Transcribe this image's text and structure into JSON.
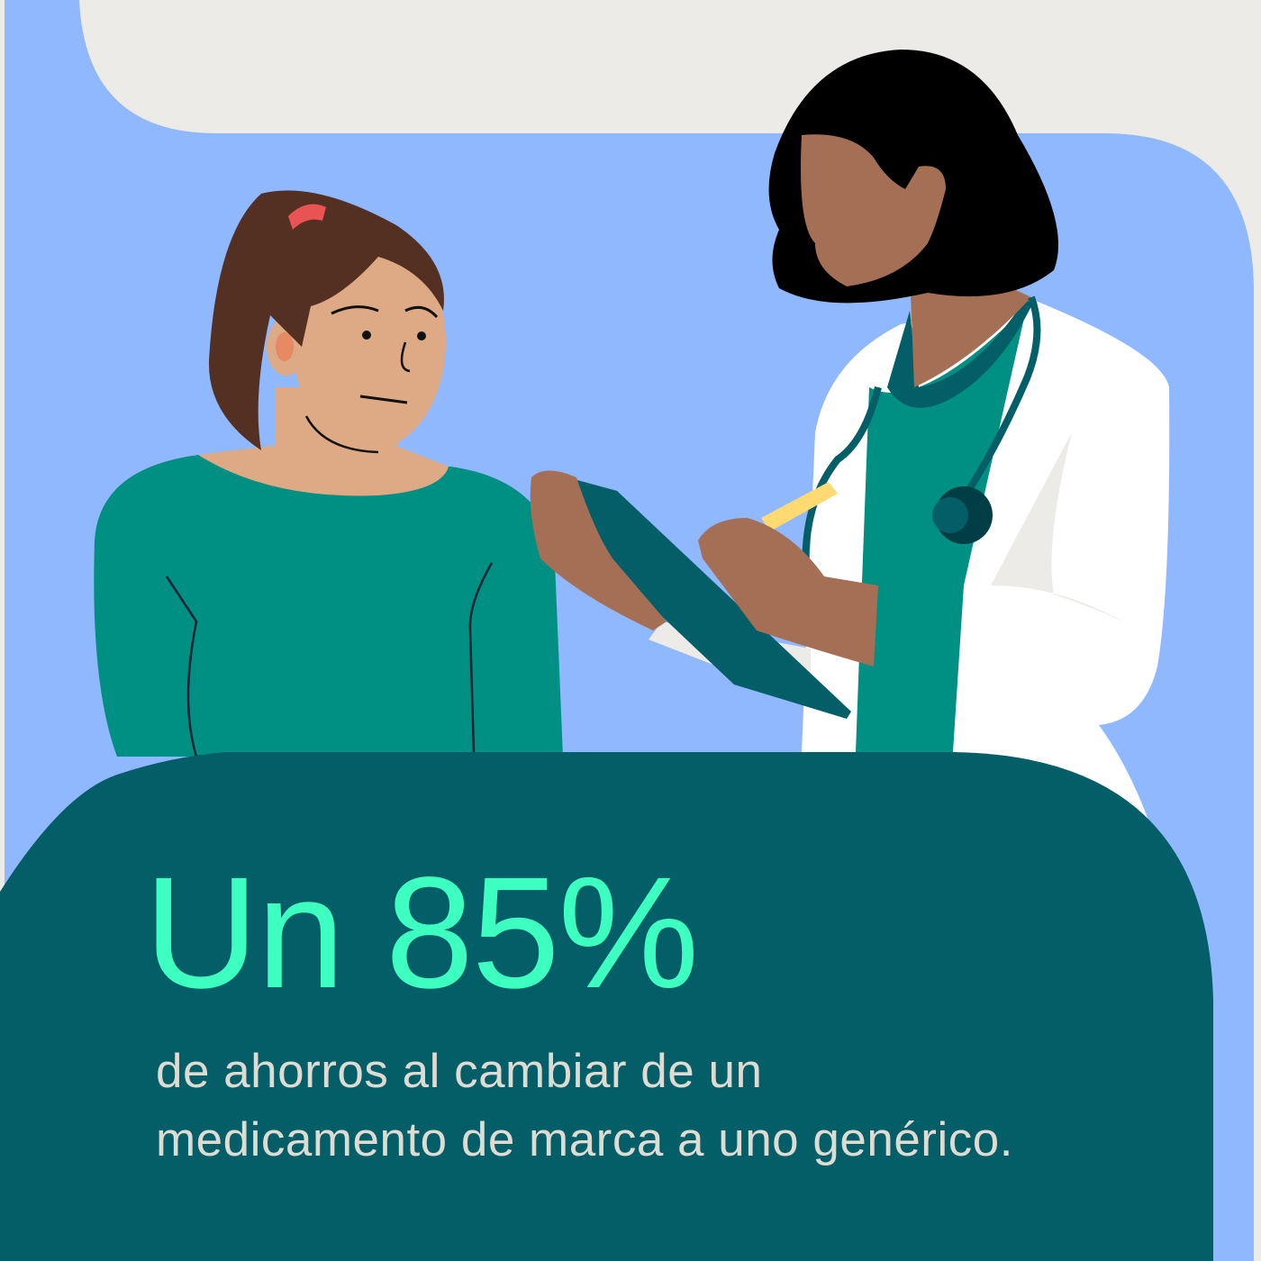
{
  "headline": "Un 85%",
  "subtitle": {
    "line1": "de ahorros al cambiar de un",
    "line2": "medicamento de marca a uno genérico."
  },
  "colors": {
    "background_blue": "#8fb8fe",
    "beige": "#ecebe7",
    "panel_teal": "#035e68",
    "accent_green": "#3dffc0",
    "text_light": "#dedbd3",
    "shirt_green": "#009083"
  },
  "illustration": {
    "patient": "woman-patient-illustration",
    "doctor": "doctor-with-clipboard-illustration"
  }
}
